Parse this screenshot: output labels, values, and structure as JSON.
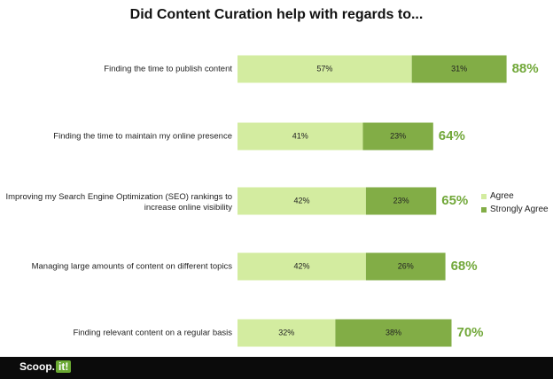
{
  "chart_data": {
    "type": "bar",
    "orientation": "horizontal",
    "stacked": true,
    "title": "Did Content Curation help with regards to...",
    "categories": [
      "Finding the time to publish content",
      "Finding the time to maintain my online presence",
      "Improving my Search Engine Optimization (SEO) rankings to increase online visibility",
      "Managing large amounts of content on different topics",
      "Finding relevant content on a regular basis"
    ],
    "series": [
      {
        "name": "Agree",
        "values": [
          57,
          41,
          42,
          42,
          32
        ],
        "labels": [
          "57%",
          "41%",
          "42%",
          "42%",
          "32%"
        ],
        "color": "#d3eca0"
      },
      {
        "name": "Strongly Agree",
        "values": [
          31,
          23,
          23,
          26,
          38
        ],
        "labels": [
          "31%",
          "23%",
          "23%",
          "26%",
          "38%"
        ],
        "color": "#82ad46"
      }
    ],
    "totals": [
      "88%",
      "64%",
      "65%",
      "68%",
      "70%"
    ],
    "total_color": "#72a83a",
    "legend_position": "right",
    "grid": false,
    "xlim": [
      0,
      100
    ]
  },
  "footer": {
    "logo_text": "Scoop.",
    "logo_badge": "it!"
  }
}
